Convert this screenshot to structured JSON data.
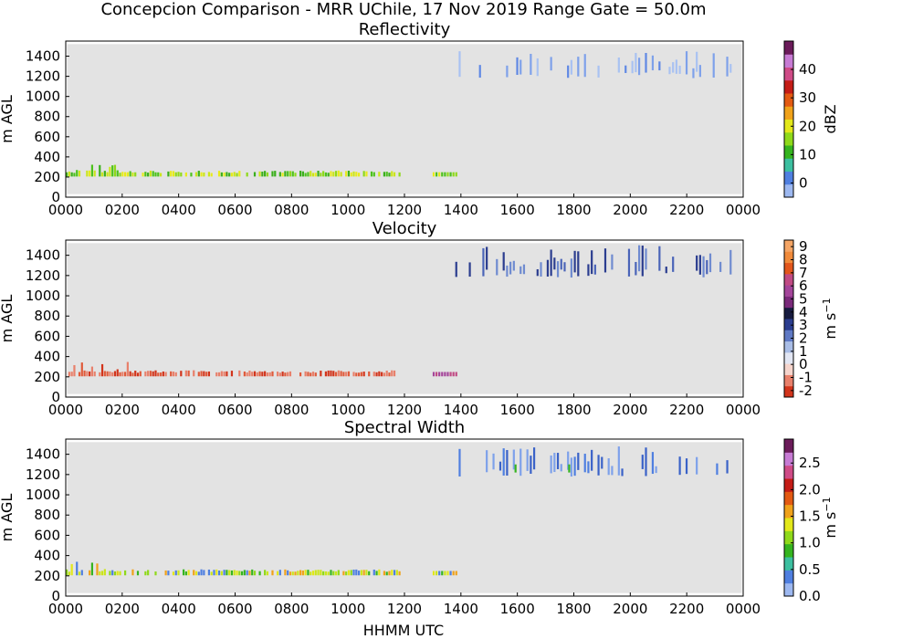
{
  "figure": {
    "title": "Concepcion Comparison - MRR UChile, 17 Nov 2019 Range Gate = 50.0m",
    "xlabel": "HHMM UTC"
  },
  "chart_data": [
    {
      "type": "heatmap",
      "title": "Reflectivity",
      "ylabel": "m AGL",
      "xlim": [
        0,
        24
      ],
      "ylim": [
        0,
        1550
      ],
      "x_tick_labels": [
        "0000",
        "0200",
        "0400",
        "0600",
        "0800",
        "1000",
        "1200",
        "1400",
        "1600",
        "1800",
        "2000",
        "2200",
        "0000"
      ],
      "y_tick_labels": [
        "0",
        "200",
        "400",
        "600",
        "800",
        "1000",
        "1200",
        "1400"
      ],
      "background_color": "#e3e3e3",
      "colorbar": {
        "label": "dBZ",
        "range": [
          -5,
          50
        ],
        "tick_labels": [
          "0",
          "10",
          "20",
          "30",
          "40"
        ],
        "tick_values": [
          0,
          10,
          20,
          30,
          40
        ],
        "colors": [
          "#9db8f0",
          "#4f7fe0",
          "#3cbfa0",
          "#35b41f",
          "#8fd91a",
          "#e3e81a",
          "#f0a21a",
          "#e35a12",
          "#c41c16",
          "#cf4b87",
          "#c77bd4",
          "#6b1b5a"
        ]
      },
      "low_layer": {
        "height_range_m": [
          150,
          340
        ],
        "time_range_hours": [
          0.0,
          11.8
        ],
        "break_hours": [
          11.8,
          13.0
        ],
        "resume_hours": [
          13.0,
          13.8
        ],
        "typical_value": "10 to 25 dBZ",
        "colors": [
          "#e8ec1a",
          "#cbe61a",
          "#8fd91a",
          "#4cc21c",
          "#3aaf1c"
        ]
      },
      "upper_echoes": {
        "height_range_m": [
          1180,
          1450
        ],
        "time_range_hours": [
          13.8,
          23.6
        ],
        "typical_value": "near 0 dBZ",
        "colors": [
          "#a9c2f2",
          "#7ea1ea",
          "#5f88e4"
        ]
      }
    },
    {
      "type": "heatmap",
      "title": "Velocity",
      "ylabel": "m AGL",
      "xlim": [
        0,
        24
      ],
      "ylim": [
        0,
        1550
      ],
      "x_tick_labels": [
        "0000",
        "0200",
        "0400",
        "0600",
        "0800",
        "1000",
        "1200",
        "1400",
        "1600",
        "1800",
        "2000",
        "2200",
        "0000"
      ],
      "y_tick_labels": [
        "0",
        "200",
        "400",
        "600",
        "800",
        "1000",
        "1200",
        "1400"
      ],
      "background_color": "#e3e3e3",
      "colorbar": {
        "label": "m s",
        "label_superscript": "−1",
        "range": [
          -2.5,
          9.5
        ],
        "tick_labels": [
          "-2",
          "-1",
          "0",
          "1",
          "2",
          "3",
          "4",
          "5",
          "6",
          "7",
          "8",
          "9"
        ],
        "tick_values": [
          -2,
          -1,
          0,
          1,
          2,
          3,
          4,
          5,
          6,
          7,
          8,
          9
        ],
        "colors": [
          "#d2341b",
          "#e8806b",
          "#f5d4cc",
          "#e2e6f3",
          "#a9bde6",
          "#5f79c4",
          "#2b3d8f",
          "#171b3f",
          "#7a2a7a",
          "#a4459a",
          "#c04a84",
          "#e2561c",
          "#f08a3a",
          "#f4a565"
        ]
      },
      "low_layer": {
        "height_range_m": [
          150,
          380
        ],
        "time_range_hours": [
          0.0,
          11.8
        ],
        "resume_hours": [
          13.0,
          13.8
        ],
        "typical_value": "about -1 to -2 m s-1",
        "colors": [
          "#e05a3a",
          "#d2341b",
          "#e8806b"
        ],
        "late_colors": [
          "#c04a84",
          "#a4459a"
        ]
      },
      "upper_echoes": {
        "height_range_m": [
          1180,
          1500
        ],
        "time_range_hours": [
          13.8,
          23.6
        ],
        "typical_value": "about 1 to 3 m s-1",
        "colors": [
          "#6f8bd0",
          "#4a64b8",
          "#2b3d8f"
        ]
      }
    },
    {
      "type": "heatmap",
      "title": "Spectral Width",
      "ylabel": "m AGL",
      "xlabel": "HHMM UTC",
      "xlim": [
        0,
        24
      ],
      "ylim": [
        0,
        1550
      ],
      "x_tick_labels": [
        "0000",
        "0200",
        "0400",
        "0600",
        "0800",
        "1000",
        "1200",
        "1400",
        "1600",
        "1800",
        "2000",
        "2200",
        "0000"
      ],
      "y_tick_labels": [
        "0",
        "200",
        "400",
        "600",
        "800",
        "1000",
        "1200",
        "1400"
      ],
      "background_color": "#e3e3e3",
      "colorbar": {
        "label": "m s",
        "label_superscript": "−1",
        "range": [
          0,
          2.95
        ],
        "tick_labels": [
          "0.0",
          "0.5",
          "1.0",
          "1.5",
          "2.0",
          "2.5"
        ],
        "tick_values": [
          0,
          0.5,
          1.0,
          1.5,
          2.0,
          2.5
        ],
        "colors": [
          "#9db8f0",
          "#4f7fe0",
          "#3cbfa0",
          "#35b41f",
          "#8fd91a",
          "#e3e81a",
          "#f0a21a",
          "#e35a12",
          "#c41c16",
          "#cf4b87",
          "#c77bd4",
          "#6b1b5a"
        ]
      },
      "low_layer": {
        "height_range_m": [
          150,
          340
        ],
        "time_range_hours": [
          0.0,
          11.8
        ],
        "resume_hours": [
          13.0,
          13.8
        ],
        "typical_value": "about 0.8 to 1.8 m s-1",
        "colors": [
          "#f0a21a",
          "#e3e81a",
          "#cbe61a",
          "#8fd91a",
          "#35b41f",
          "#4f7fe0"
        ]
      },
      "upper_echoes": {
        "height_range_m": [
          1180,
          1480
        ],
        "time_range_hours": [
          13.8,
          23.6
        ],
        "typical_value": "about 0.2 to 0.5 m s-1",
        "colors": [
          "#4f7fe0",
          "#3a62c8",
          "#7ea1ea"
        ],
        "accent_colors": [
          "#35b41f"
        ]
      }
    }
  ]
}
